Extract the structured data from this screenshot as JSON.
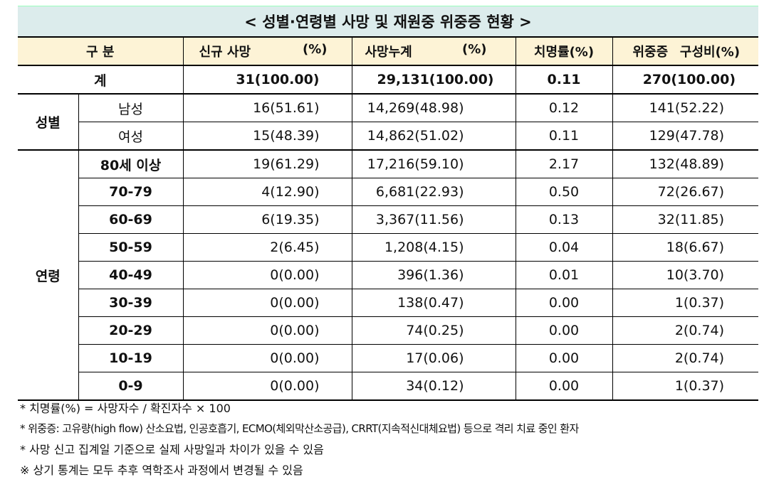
{
  "title": "< 성별·연령별 사망 및 재원중 위중증 현황 >",
  "headers": {
    "group": "구 분",
    "new_death": "신규 사망",
    "new_pct": "(%)",
    "cum_death": "사망누계",
    "cum_pct": "(%)",
    "fatality": "치명률(%)",
    "critical": "위중증",
    "critical_ratio": "구성비(%)"
  },
  "total": {
    "label": "계",
    "new": "31(100.00)",
    "cum": "29,131(100.00)",
    "fatality": "0.11",
    "critical": "270(100.00)"
  },
  "sex_group": "성별",
  "sex_rows": [
    {
      "label": "남성",
      "new": "16(51.61)",
      "cum": "14,269(48.98)",
      "fatality": "0.12",
      "critical": "141(52.22)"
    },
    {
      "label": "여성",
      "new": "15(48.39)",
      "cum": "14,862(51.02)",
      "fatality": "0.11",
      "critical": "129(47.78)"
    }
  ],
  "age_group": "연령",
  "age_rows": [
    {
      "label": "80세 이상",
      "new": "19(61.29)",
      "cum": "17,216(59.10)",
      "fatality": "2.17",
      "critical": "132(48.89)"
    },
    {
      "label": "70-79",
      "new": "4(12.90)",
      "cum": "6,681(22.93)",
      "fatality": "0.50",
      "critical": "72(26.67)"
    },
    {
      "label": "60-69",
      "new": "6(19.35)",
      "cum": "3,367(11.56)",
      "fatality": "0.13",
      "critical": "32(11.85)"
    },
    {
      "label": "50-59",
      "new": "2(6.45)",
      "cum": "1,208(4.15)",
      "fatality": "0.04",
      "critical": "18(6.67)"
    },
    {
      "label": "40-49",
      "new": "0(0.00)",
      "cum": "396(1.36)",
      "fatality": "0.01",
      "critical": "10(3.70)"
    },
    {
      "label": "30-39",
      "new": "0(0.00)",
      "cum": "138(0.47)",
      "fatality": "0.00",
      "critical": "1(0.37)"
    },
    {
      "label": "20-29",
      "new": "0(0.00)",
      "cum": "74(0.25)",
      "fatality": "0.00",
      "critical": "2(0.74)"
    },
    {
      "label": "10-19",
      "new": "0(0.00)",
      "cum": "17(0.06)",
      "fatality": "0.00",
      "critical": "2(0.74)"
    },
    {
      "label": "0-9",
      "new": "0(0.00)",
      "cum": "34(0.12)",
      "fatality": "0.00",
      "critical": "1(0.37)"
    }
  ],
  "notes": [
    "* 치명률(%) = 사망자수 / 확진자수 × 100",
    "* 위중증: 고유량(high flow) 산소요법, 인공호흡기, ECMO(체외막산소공급), CRRT(지속적신대체요법) 등으로 격리 치료 중인 환자",
    "* 사망 신고 집계일 기준으로 실제 사망일과 차이가 있을 수 있음",
    "※ 상기 통계는 모두 추후 역학조사 과정에서 변경될 수 있음"
  ]
}
